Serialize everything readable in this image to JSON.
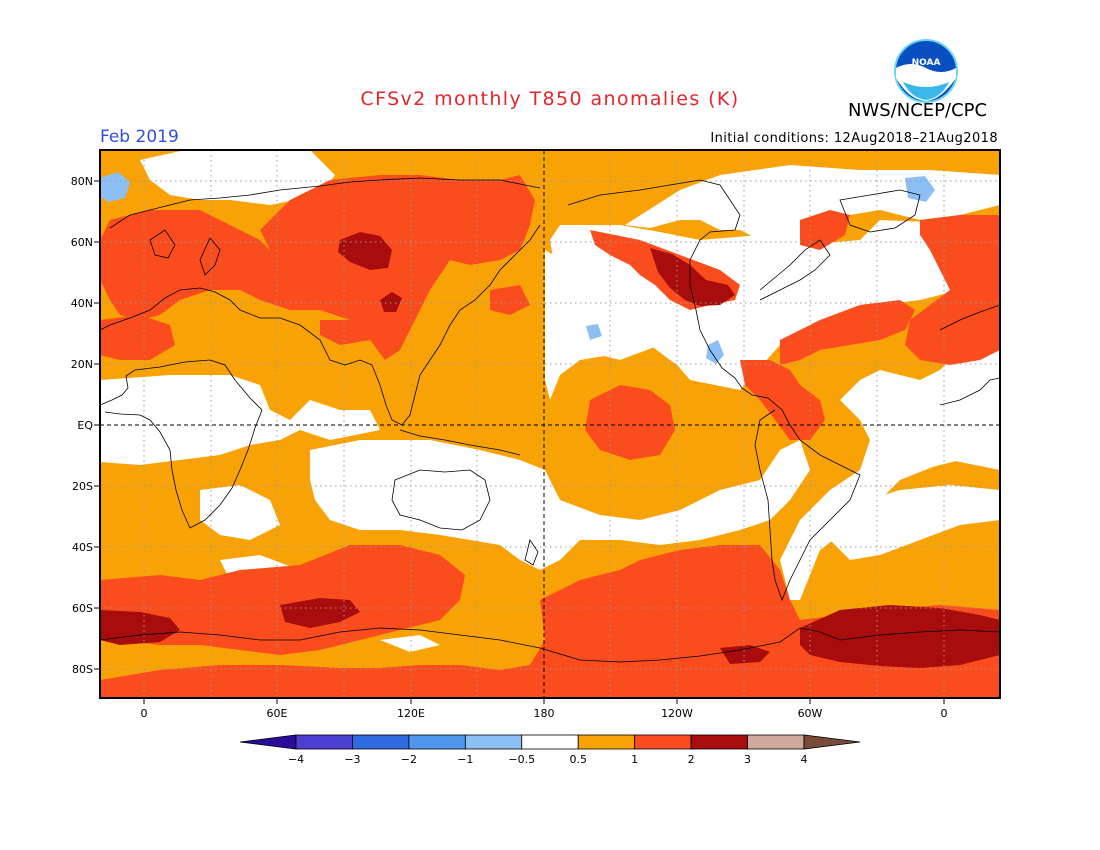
{
  "title": "CFSv2 monthly T850 anomalies (K)",
  "organization": "NWS/NCEP/CPC",
  "logo_text": "NOAA",
  "valid_month": "Feb 2019",
  "initial_conditions": "Initial conditions: 12Aug2018–21Aug2018",
  "colors": {
    "title": "#e8242b",
    "month": "#2f4fd9",
    "levels": [
      "#2b0b9a",
      "#4d3fd2",
      "#2f6be0",
      "#4f96ee",
      "#8cc0f4",
      "#ffffff",
      "#f9a205",
      "#fb4c1e",
      "#a90c0c",
      "#d1a99c",
      "#7a4a3b"
    ]
  },
  "lat_axis": [
    "80N",
    "60N",
    "40N",
    "20N",
    "EQ",
    "20S",
    "40S",
    "60S",
    "80S"
  ],
  "lon_axis": [
    "0",
    "60E",
    "120E",
    "180",
    "120W",
    "60W",
    "0"
  ],
  "colorbar_labels": [
    "−4",
    "−3",
    "−2",
    "−1",
    "−0.5",
    "0.5",
    "1",
    "2",
    "3",
    "4"
  ]
}
